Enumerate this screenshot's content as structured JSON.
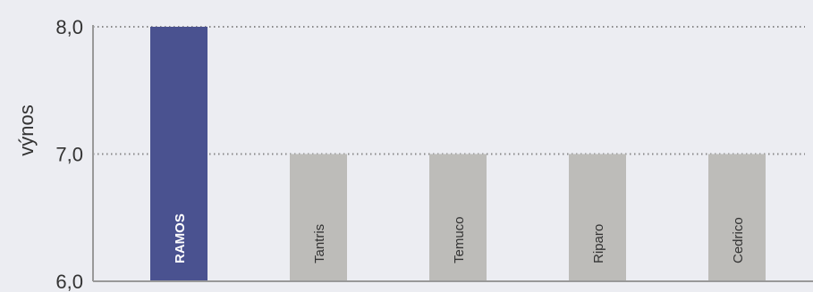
{
  "chart_data": {
    "type": "bar",
    "ylabel": "výnos",
    "xlabel": "",
    "ylim": [
      6.0,
      8.0
    ],
    "yticks": [
      "6,0",
      "7,0",
      "8,0"
    ],
    "grid": "dotted horizontal at 7,0 and 8,0",
    "categories": [
      "RAMOS",
      "Tantris",
      "Temuco",
      "Riparo",
      "Cedrico"
    ],
    "values": [
      8.0,
      7.0,
      7.0,
      7.0,
      7.0
    ],
    "highlight": "RAMOS",
    "colors": {
      "highlight": "#4a5290",
      "bar": "#bdbcb9",
      "grid": "#888888",
      "axis": "#999999",
      "background": "#ecedf2"
    }
  }
}
